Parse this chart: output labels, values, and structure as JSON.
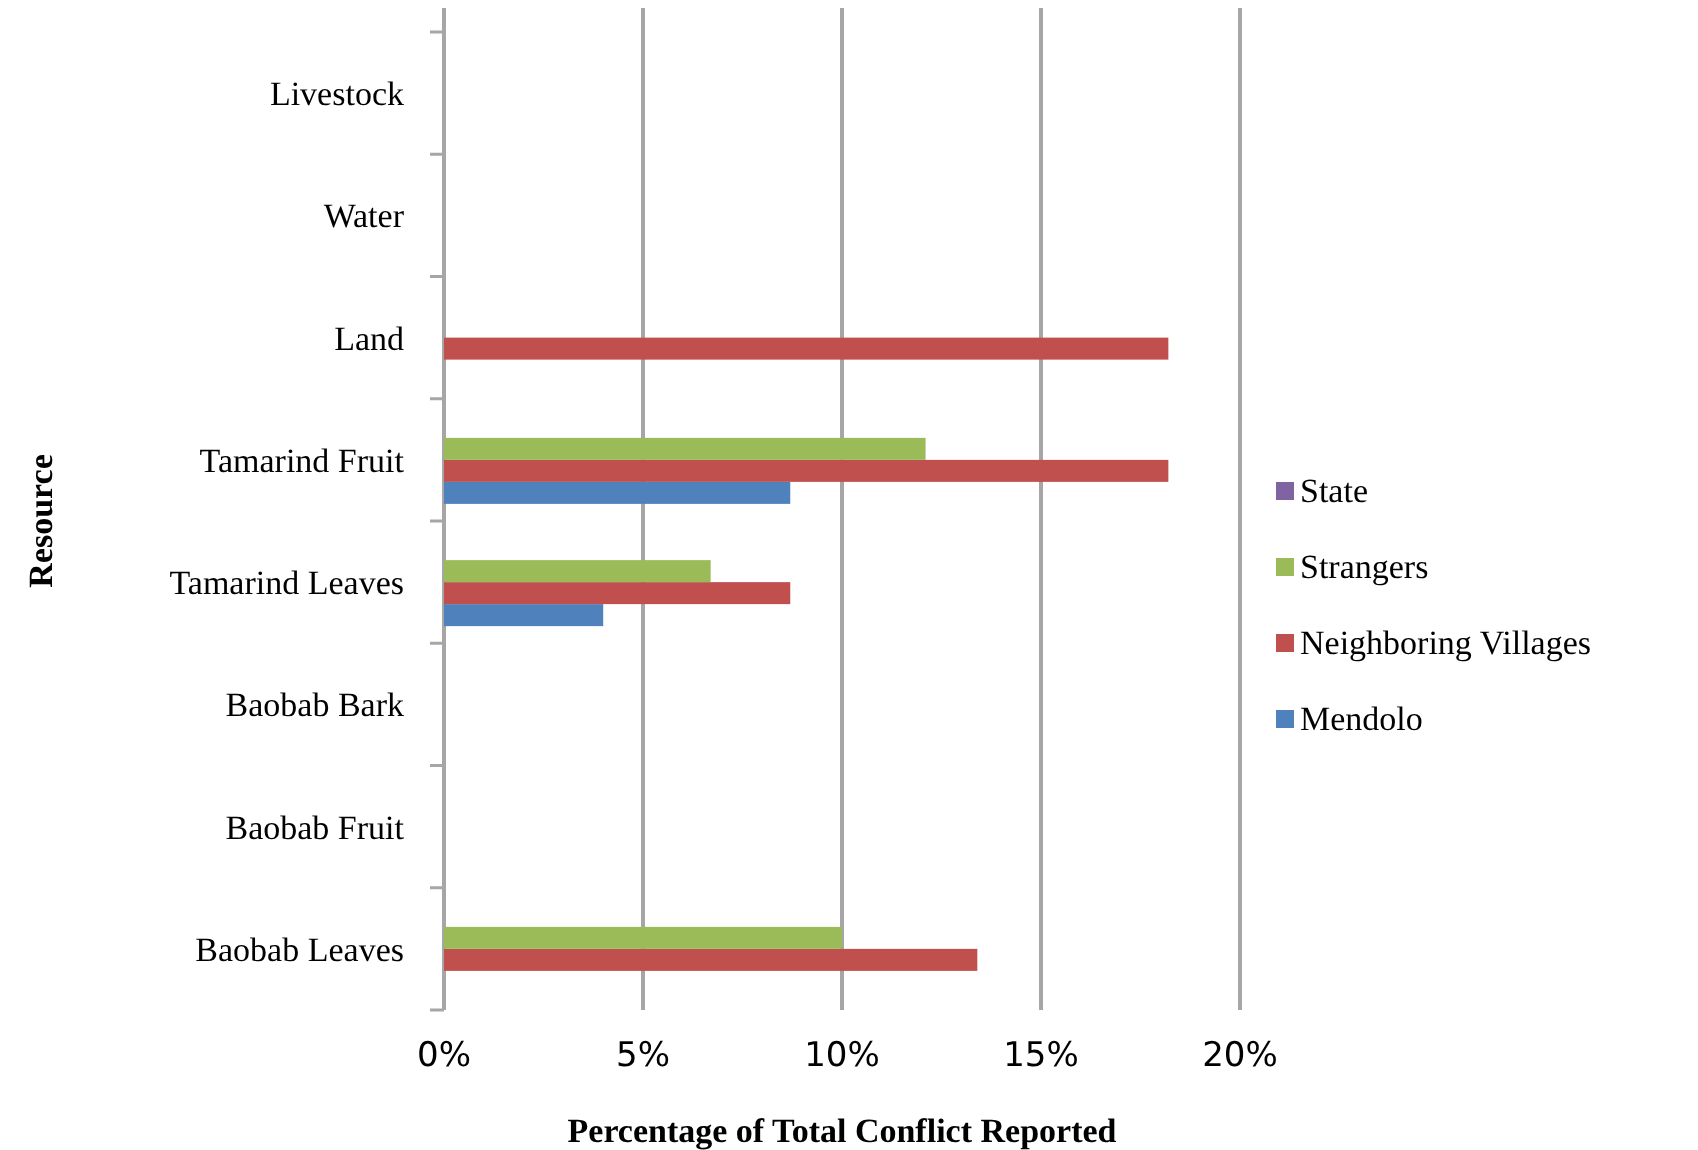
{
  "chart_data": {
    "type": "bar",
    "orientation": "horizontal",
    "xlabel": "Percentage of Total Conflict Reported",
    "ylabel": "Resource",
    "categories": [
      "Livestock",
      "Water",
      "Land",
      "Tamarind Fruit",
      "Tamarind Leaves",
      "Baobab Bark",
      "Baobab Fruit",
      "Baobab Leaves"
    ],
    "series": [
      {
        "name": "Mendolo",
        "color": "#4f81bd",
        "values": [
          0,
          0,
          0,
          8.7,
          4.0,
          0,
          0,
          0
        ]
      },
      {
        "name": "Neighboring Villages",
        "color": "#c0504d",
        "values": [
          0,
          0,
          18.2,
          18.2,
          8.7,
          0,
          0,
          13.4
        ]
      },
      {
        "name": "Strangers",
        "color": "#9bbb59",
        "values": [
          0,
          0,
          0,
          12.1,
          6.7,
          0,
          0,
          10.0
        ]
      },
      {
        "name": "State",
        "color": "#8064a2",
        "values": [
          0,
          0,
          0,
          0,
          0,
          0,
          0,
          0
        ]
      }
    ],
    "xlim": [
      0,
      20
    ],
    "xticks": [
      {
        "value": 0,
        "label": "0%"
      },
      {
        "value": 5,
        "label": "5%"
      },
      {
        "value": 10,
        "label": "10%"
      },
      {
        "value": 15,
        "label": "15%"
      },
      {
        "value": 20,
        "label": "20%"
      }
    ],
    "grid": "x",
    "legend": "right"
  }
}
